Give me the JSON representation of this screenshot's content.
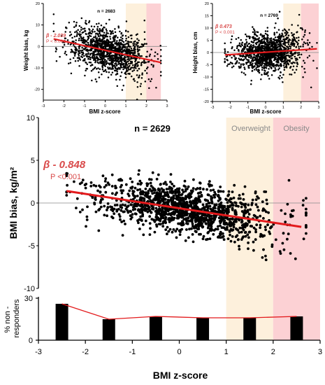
{
  "figure": {
    "shade_overweight": "#fdf0dc",
    "shade_obesity": "#fcd1d4",
    "point_color": "#000000",
    "fit_color": "#e31a1c",
    "annot_color": "#d94a4a"
  },
  "chart_data": [
    {
      "type": "scatter",
      "panel": "weight",
      "n_label": "n = 2683",
      "xlabel": "BMI z-score",
      "ylabel": "Weight bias, kg",
      "xlim": [
        -3,
        3
      ],
      "ylim": [
        -25,
        20
      ],
      "xticks": [
        -3,
        -2,
        -1,
        0,
        1,
        2,
        3
      ],
      "yticks": [
        -20,
        -10,
        0,
        10,
        20
      ],
      "zones": [
        {
          "name": "Overweight",
          "x": [
            1,
            2
          ]
        },
        {
          "name": "Obesity",
          "x": [
            2,
            2.7
          ]
        }
      ],
      "beta_label": "β - 2.039",
      "p_label": "P < 0.001",
      "fit": {
        "x": [
          -2.5,
          2.7
        ],
        "y": [
          3.5,
          -7.5
        ]
      },
      "cloud": {
        "x_range": [
          -2.5,
          2.7
        ],
        "spread": 5,
        "count": 1300
      }
    },
    {
      "type": "scatter",
      "panel": "height",
      "n_label": "n = 2769",
      "xlabel": "BMI z-score",
      "ylabel": "Height bias, cm",
      "xlim": [
        -3,
        3
      ],
      "ylim": [
        -20,
        20
      ],
      "xticks": [
        -3,
        -2,
        -1,
        0,
        1,
        2,
        3
      ],
      "yticks": [
        -20,
        -15,
        -10,
        -5,
        0,
        5,
        10,
        15,
        20
      ],
      "zones": [
        {
          "name": "Overweight",
          "x": [
            1,
            2
          ]
        },
        {
          "name": "Obesity",
          "x": [
            2,
            3
          ]
        }
      ],
      "beta_label": "β 0.473",
      "p_label": "P < 0.001",
      "fit": {
        "x": [
          -2.3,
          2.9
        ],
        "y": [
          -1,
          1.5
        ]
      },
      "cloud": {
        "x_range": [
          -2.3,
          2.9
        ],
        "spread": 4,
        "count": 1300
      }
    },
    {
      "type": "scatter",
      "panel": "bmi",
      "n_label": "n = 2629",
      "xlabel": "BMI z-score",
      "ylabel": "BMI bias, kg/m²",
      "xlim": [
        -3,
        3
      ],
      "ylim": [
        -10,
        10
      ],
      "xticks": [
        -3,
        -2,
        -1,
        0,
        1,
        2,
        3
      ],
      "yticks": [
        -10,
        -5,
        0,
        5,
        10
      ],
      "zones": [
        {
          "name": "Overweight",
          "x": [
            1,
            2
          ]
        },
        {
          "name": "Obesity",
          "x": [
            2,
            3
          ]
        }
      ],
      "beta_label": "β - 0.848",
      "p_label": "P <0.001",
      "fit": {
        "x": [
          -2.4,
          2.6
        ],
        "y": [
          1.4,
          -2.8
        ]
      },
      "cloud": {
        "x_range": [
          -2.4,
          2.7
        ],
        "spread": 1.5,
        "count": 1400
      }
    },
    {
      "type": "bar",
      "panel": "nonresponders",
      "ylabel": "% non -\nresponders",
      "xlim": [
        -3,
        3
      ],
      "ylim": [
        0,
        30
      ],
      "yticks": [
        0,
        30
      ],
      "categories": [
        -2.5,
        -1.5,
        -0.5,
        0.5,
        1.5,
        2.5
      ],
      "values": [
        26,
        15,
        17,
        16,
        16,
        17
      ]
    }
  ]
}
